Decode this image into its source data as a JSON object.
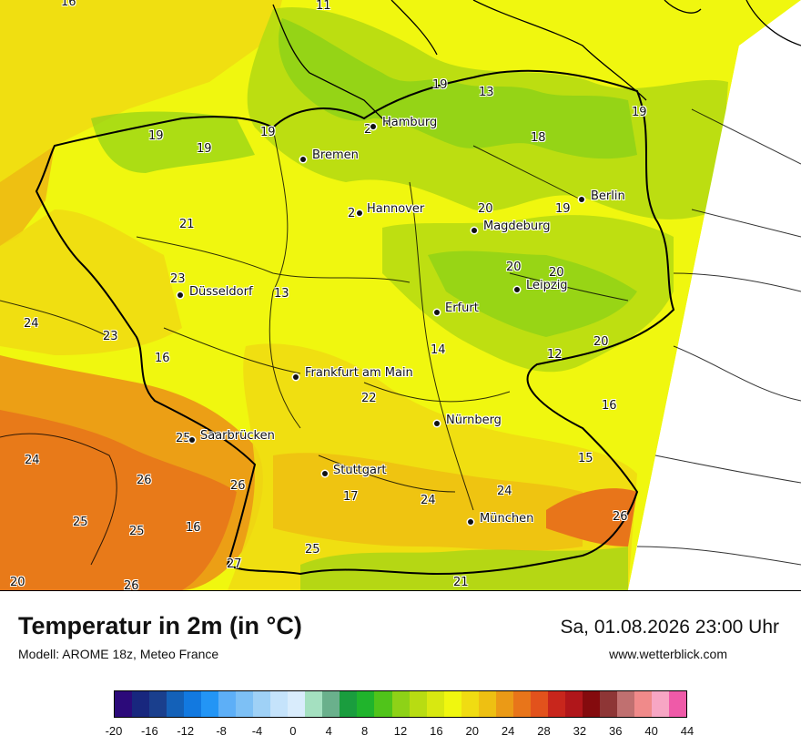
{
  "title": "Temperatur in 2m (in °C)",
  "model": "Modell: AROME 18z, Meteo France",
  "datetime": "Sa, 01.08.2026 23:00 Uhr",
  "website": "www.wetterblick.com",
  "cities": [
    {
      "name": "Hamburg"
    },
    {
      "name": "Bremen"
    },
    {
      "name": "Hannover"
    },
    {
      "name": "Berlin"
    },
    {
      "name": "Magdeburg"
    },
    {
      "name": "Leipzig"
    },
    {
      "name": "Düsseldorf"
    },
    {
      "name": "Erfurt"
    },
    {
      "name": "Frankfurt am Main"
    },
    {
      "name": "Nürnberg"
    },
    {
      "name": "Saarbrücken"
    },
    {
      "name": "Stuttgart"
    },
    {
      "name": "München"
    }
  ],
  "values": [
    "16",
    "11",
    "19",
    "13",
    "19",
    "19",
    "19",
    "18",
    "19",
    "21",
    "20",
    "20",
    "23",
    "13",
    "19",
    "20",
    "24",
    "23",
    "16",
    "14",
    "12",
    "20",
    "22",
    "16",
    "25",
    "24",
    "26",
    "26",
    "15",
    "17",
    "24",
    "24",
    "25",
    "25",
    "16",
    "26",
    "20",
    "26",
    "25",
    "27",
    "21",
    "2",
    "2"
  ],
  "legend": {
    "colors": [
      "#2c0a7a",
      "#18277e",
      "#1a3f8d",
      "#1461b8",
      "#1279e0",
      "#2395f5",
      "#5daff7",
      "#7dc0f5",
      "#9fd1f6",
      "#c5e3fb",
      "#d9ecfc",
      "#a4e0c0",
      "#6ab08c",
      "#1a9d3e",
      "#20b42c",
      "#50c41a",
      "#8ed217",
      "#b8dc12",
      "#d8e811",
      "#f0f70f",
      "#f0dc12",
      "#eec012",
      "#eb9a16",
      "#e8751a",
      "#e2521c",
      "#c8261c",
      "#b0161a",
      "#840b0e",
      "#8e3636",
      "#c07070",
      "#f08a8a",
      "#f7a6c4",
      "#ef5aa8"
    ],
    "ticks": [
      "-20",
      "-16",
      "-12",
      "-8",
      "-4",
      "0",
      "4",
      "8",
      "12",
      "16",
      "20",
      "24",
      "28",
      "32",
      "36",
      "40",
      "44"
    ]
  },
  "temperature_field_colors": {
    "sea_north": "#f0f70f",
    "cool_green": "#8ed217",
    "yellow_green": "#d8e811",
    "yellow": "#f0f70f",
    "warm_yellow": "#f0dc12",
    "orange": "#eb9a16",
    "hot_orange": "#e8751a"
  }
}
